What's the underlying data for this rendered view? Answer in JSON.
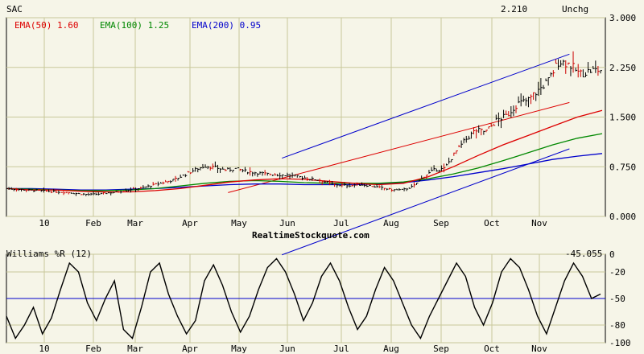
{
  "header": {
    "symbol": "SAC",
    "last_price": "2.210",
    "change": "Unchg"
  },
  "colors": {
    "background": "#f6f5e8",
    "grid": "#c8c89a",
    "price_bar": "#000000",
    "down_bar": "#cc0000",
    "ema50": "#dd0000",
    "ema100": "#008800",
    "ema200": "#0000cc",
    "channel_upper": "#0000cc",
    "channel_red": "#dd0000",
    "williams_line": "#000000",
    "williams_ref": "#0000cc"
  },
  "watermark": "RealtimeStockquote.com",
  "chart_data": [
    {
      "type": "line",
      "panel": "price",
      "legend": [
        {
          "label": "EMA(50)",
          "value": "1.60",
          "color": "#dd0000"
        },
        {
          "label": "EMA(100)",
          "value": "1.25",
          "color": "#008800"
        },
        {
          "label": "EMA(200)",
          "value": "0.95",
          "color": "#0000cc"
        }
      ],
      "x_tick_labels": [
        "10",
        "Feb",
        "Mar",
        "Apr",
        "May",
        "Jun",
        "Jul",
        "Aug",
        "Sep",
        "Oct",
        "Nov"
      ],
      "y_tick_labels": [
        "3.000",
        "2.250",
        "1.500",
        "0.750",
        "0.000"
      ],
      "ylim": [
        0,
        3
      ],
      "grid": true,
      "price_path": [
        0.42,
        0.41,
        0.4,
        0.39,
        0.38,
        0.37,
        0.36,
        0.34,
        0.33,
        0.34,
        0.36,
        0.38,
        0.41,
        0.43,
        0.47,
        0.51,
        0.55,
        0.62,
        0.7,
        0.76,
        0.74,
        0.7,
        0.72,
        0.68,
        0.66,
        0.64,
        0.63,
        0.62,
        0.6,
        0.57,
        0.55,
        0.5,
        0.47,
        0.47,
        0.48,
        0.46,
        0.43,
        0.4,
        0.4,
        0.45,
        0.6,
        0.7,
        0.72,
        0.95,
        1.15,
        1.3,
        1.28,
        1.45,
        1.52,
        1.7,
        1.75,
        1.9,
        2.05,
        2.35,
        2.3,
        2.15,
        2.2,
        2.21
      ],
      "ema50": [
        0.42,
        0.4,
        0.4,
        0.38,
        0.37,
        0.37,
        0.39,
        0.42,
        0.47,
        0.52,
        0.55,
        0.57,
        0.56,
        0.53,
        0.5,
        0.48,
        0.5,
        0.6,
        0.75,
        0.92,
        1.08,
        1.22,
        1.36,
        1.5,
        1.6
      ],
      "ema100": [
        0.42,
        0.41,
        0.4,
        0.39,
        0.39,
        0.4,
        0.42,
        0.46,
        0.5,
        0.53,
        0.54,
        0.53,
        0.51,
        0.5,
        0.5,
        0.5,
        0.52,
        0.57,
        0.64,
        0.73,
        0.84,
        0.96,
        1.08,
        1.18,
        1.25
      ],
      "ema200": [
        0.42,
        0.42,
        0.41,
        0.4,
        0.4,
        0.41,
        0.42,
        0.44,
        0.46,
        0.48,
        0.49,
        0.49,
        0.48,
        0.48,
        0.48,
        0.49,
        0.51,
        0.55,
        0.6,
        0.66,
        0.72,
        0.79,
        0.86,
        0.91,
        0.95
      ],
      "channel_upper": {
        "x_frac": [
          0.46,
          0.94
        ],
        "y": [
          0.88,
          2.45
        ]
      },
      "channel_lower": {
        "x_frac": [
          0.46,
          0.94
        ],
        "y": [
          -0.58,
          1.02
        ]
      },
      "channel_red": {
        "x_frac": [
          0.37,
          0.94
        ],
        "y": [
          0.36,
          1.72
        ]
      }
    },
    {
      "type": "line",
      "panel": "indicator",
      "title": "Williams %R (12)",
      "current_value": "-45.055",
      "y_tick_labels": [
        "0",
        "-20",
        "-50",
        "-80",
        "-100"
      ],
      "ylim": [
        -100,
        0
      ],
      "reference_level": -50,
      "values": [
        -70,
        -95,
        -80,
        -60,
        -90,
        -72,
        -40,
        -10,
        -20,
        -55,
        -75,
        -50,
        -30,
        -85,
        -95,
        -60,
        -20,
        -10,
        -45,
        -70,
        -90,
        -75,
        -30,
        -12,
        -35,
        -65,
        -88,
        -70,
        -40,
        -15,
        -5,
        -20,
        -45,
        -75,
        -55,
        -25,
        -10,
        -30,
        -60,
        -85,
        -70,
        -40,
        -15,
        -30,
        -55,
        -80,
        -95,
        -70,
        -50,
        -30,
        -10,
        -25,
        -60,
        -80,
        -55,
        -20,
        -5,
        -15,
        -40,
        -70,
        -90,
        -60,
        -30,
        -10,
        -25,
        -50,
        -45
      ]
    }
  ]
}
